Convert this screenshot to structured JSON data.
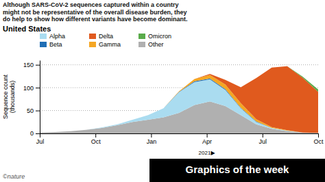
{
  "chart_data": {
    "type": "area",
    "stacked": true,
    "title": "Although SARS-CoV-2 sequences captured within a country\nmight not be representative of the overall disease burden, they\ndo help to show how different variants have become dominant.",
    "subtitle": "United States",
    "y_label": "Sequence count\n(thousands)",
    "annotations": [
      {
        "text": "2021▶",
        "x": 9
      }
    ],
    "footer": "Graphics of the week",
    "source": "©nature",
    "x": [
      0,
      0.8333333333333334,
      1.6666666666666667,
      2.5,
      3.3333333333333335,
      4.166666666666667,
      5,
      5.833333333333334,
      6.666666666666667,
      7.5,
      8.333333333333334,
      9.166666666666668,
      10,
      10.833333333333334,
      11.666666666666668,
      12.5,
      13.333333333333334,
      14.166666666666668,
      15
    ],
    "xlim": [
      0,
      15
    ],
    "xticks": [
      {
        "value": 0,
        "label": "Jul"
      },
      {
        "value": 3,
        "label": "Oct"
      },
      {
        "value": 6,
        "label": "Jan"
      },
      {
        "value": 9,
        "label": "Apr"
      },
      {
        "value": 12,
        "label": "Jul"
      },
      {
        "value": 15,
        "label": "Oct"
      }
    ],
    "ylim": [
      0,
      160
    ],
    "yticks": [
      0,
      50,
      100,
      150
    ],
    "grid": true,
    "legend": "top",
    "series": [
      {
        "name": "Other",
        "color": "#b0b0b0",
        "values": [
          2,
          3,
          5,
          8,
          12,
          18,
          25,
          30,
          35,
          45,
          62,
          70,
          60,
          40,
          20,
          10,
          5,
          2,
          1
        ]
      },
      {
        "name": "Alpha",
        "color": "#aadcf0",
        "values": [
          0,
          0,
          0,
          0,
          1,
          2,
          5,
          10,
          20,
          45,
          50,
          48,
          35,
          15,
          5,
          2,
          1,
          0,
          0
        ]
      },
      {
        "name": "Beta",
        "color": "#1f6eb5",
        "values": [
          0,
          0,
          0,
          0,
          0,
          0,
          0,
          0,
          0,
          1,
          2,
          2,
          2,
          1,
          1,
          0,
          0,
          0,
          0
        ]
      },
      {
        "name": "Gamma",
        "color": "#f5a623",
        "values": [
          0,
          0,
          0,
          0,
          0,
          0,
          0,
          0,
          0,
          1,
          5,
          8,
          10,
          10,
          5,
          2,
          1,
          0,
          0
        ]
      },
      {
        "name": "Delta",
        "color": "#e05a1e",
        "values": [
          0,
          0,
          0,
          0,
          0,
          0,
          0,
          0,
          0,
          0,
          0,
          2,
          10,
          35,
          90,
          130,
          140,
          120,
          90
        ]
      },
      {
        "name": "Omicron",
        "color": "#5aab4a",
        "values": [
          0,
          0,
          0,
          0,
          0,
          0,
          0,
          0,
          0,
          0,
          0,
          0,
          0,
          0,
          0,
          0,
          0,
          2,
          5
        ]
      }
    ]
  }
}
